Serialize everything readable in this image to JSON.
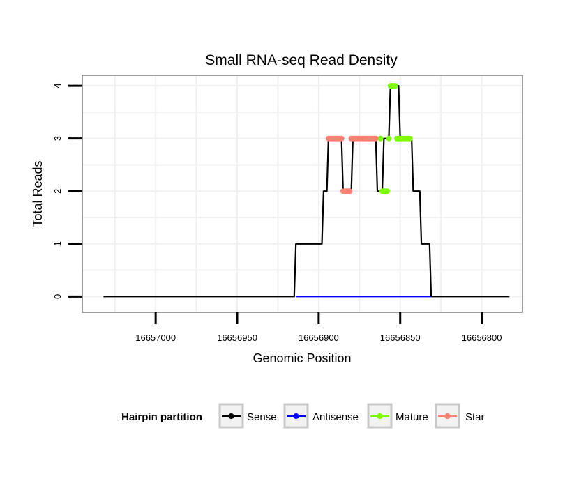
{
  "chart_data": {
    "type": "line",
    "title": "Small RNA-seq Read Density",
    "xlabel": "Genomic Position",
    "ylabel": "Total Reads",
    "x_reversed": true,
    "xlim": [
      16657045,
      16656775
    ],
    "ylim": [
      -0.3,
      4.2
    ],
    "x_ticks": [
      {
        "value": 16657000,
        "label": "16657000"
      },
      {
        "value": 16656950,
        "label": "16656950"
      },
      {
        "value": 16656900,
        "label": "16656900"
      },
      {
        "value": 16656850,
        "label": "16656850"
      },
      {
        "value": 16656800,
        "label": "16656800"
      }
    ],
    "y_ticks": [
      {
        "value": 0,
        "label": "0"
      },
      {
        "value": 1,
        "label": "1"
      },
      {
        "value": 2,
        "label": "2"
      },
      {
        "value": 3,
        "label": "3"
      },
      {
        "value": 4,
        "label": "4"
      }
    ],
    "grid": true,
    "legend": {
      "title": "Hairpin partition",
      "position": "bottom",
      "entries": [
        {
          "name": "Sense",
          "color": "#000000"
        },
        {
          "name": "Antisense",
          "color": "#0000ff"
        },
        {
          "name": "Mature",
          "color": "#7cfc00"
        },
        {
          "name": "Star",
          "color": "#fa8072"
        }
      ]
    },
    "series": [
      {
        "name": "Sense",
        "color": "#000000",
        "points": [
          [
            16657032,
            0
          ],
          [
            16656915,
            0
          ],
          [
            16656914,
            1
          ],
          [
            16656898,
            1
          ],
          [
            16656897,
            2
          ],
          [
            16656895,
            2
          ],
          [
            16656894,
            3
          ],
          [
            16656886,
            3
          ],
          [
            16656885,
            2
          ],
          [
            16656880,
            2
          ],
          [
            16656879,
            3
          ],
          [
            16656865,
            3
          ],
          [
            16656864,
            2
          ],
          [
            16656861,
            2
          ],
          [
            16656860,
            3
          ],
          [
            16656857,
            3
          ],
          [
            16656856,
            4
          ],
          [
            16656851,
            4
          ],
          [
            16656850,
            3
          ],
          [
            16656843,
            3
          ],
          [
            16656842,
            2
          ],
          [
            16656838,
            2
          ],
          [
            16656837,
            1
          ],
          [
            16656832,
            1
          ],
          [
            16656831,
            0
          ],
          [
            16656783,
            0
          ]
        ]
      },
      {
        "name": "Antisense",
        "color": "#0000ff",
        "points": [
          [
            16656914,
            0
          ],
          [
            16656831,
            0
          ]
        ]
      },
      {
        "name": "Mature",
        "color": "#7cfc00",
        "x": [
          16656862,
          16656861,
          16656860,
          16656859,
          16656858,
          16656857,
          16656856,
          16656855,
          16656854,
          16656853,
          16656852,
          16656851,
          16656850,
          16656849,
          16656848,
          16656847,
          16656846,
          16656845,
          16656844
        ],
        "y": [
          3,
          2,
          2,
          2,
          2,
          3,
          4,
          4,
          4,
          4,
          3,
          3,
          3,
          3,
          3,
          3,
          3,
          3,
          3
        ]
      },
      {
        "name": "Star",
        "color": "#fa8072",
        "x": [
          16656894,
          16656893,
          16656892,
          16656891,
          16656890,
          16656889,
          16656888,
          16656887,
          16656886,
          16656885,
          16656884,
          16656883,
          16656882,
          16656881,
          16656880,
          16656879,
          16656878,
          16656877,
          16656876,
          16656875,
          16656874,
          16656873,
          16656872,
          16656871,
          16656870,
          16656869,
          16656868,
          16656867,
          16656866,
          16656865
        ],
        "y": [
          3,
          3,
          3,
          3,
          3,
          3,
          3,
          3,
          3,
          2,
          2,
          2,
          2,
          2,
          3,
          3,
          3,
          3,
          3,
          3,
          3,
          3,
          3,
          3,
          3,
          3,
          3,
          3,
          3,
          3
        ]
      }
    ]
  }
}
